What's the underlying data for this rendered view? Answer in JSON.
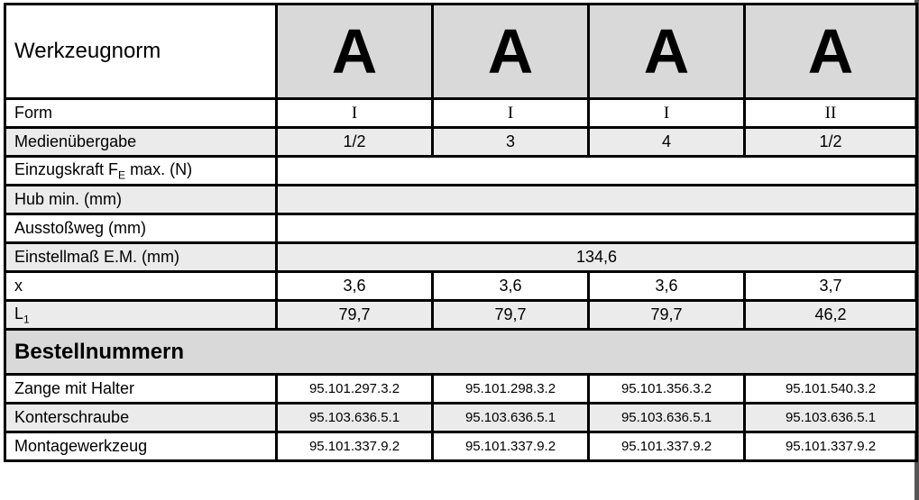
{
  "header": {
    "label": "Werkzeugnorm",
    "columns": [
      "A",
      "A",
      "A",
      "A"
    ]
  },
  "rows": {
    "form": {
      "label": "Form",
      "values": [
        "I",
        "I",
        "I",
        "II"
      ]
    },
    "medien": {
      "label": "Medienübergabe",
      "values": [
        "1/2",
        "3",
        "4",
        "1/2"
      ]
    },
    "einzug": {
      "label": "Einzugskraft F",
      "sub": "E",
      "suffix": " max. (N)",
      "value": ""
    },
    "hub": {
      "label": "Hub min. (mm)",
      "value": ""
    },
    "ausstoss": {
      "label": "Ausstoßweg (mm)",
      "value": ""
    },
    "einstell": {
      "label": "Einstellmaß E.M. (mm)",
      "value": "134,6"
    },
    "x": {
      "label": "x",
      "values": [
        "3,6",
        "3,6",
        "3,6",
        "3,7"
      ]
    },
    "l1": {
      "label": "L",
      "sub": "1",
      "values": [
        "79,7",
        "79,7",
        "79,7",
        "46,2"
      ]
    }
  },
  "section": {
    "title": "Bestellnummern"
  },
  "orders": [
    {
      "label": "Zange mit Halter",
      "values": [
        "95.101.297.3.2",
        "95.101.298.3.2",
        "95.101.356.3.2",
        "95.101.540.3.2"
      ]
    },
    {
      "label": "Konterschraube",
      "values": [
        "95.103.636.5.1",
        "95.103.636.5.1",
        "95.103.636.5.1",
        "95.103.636.5.1"
      ]
    },
    {
      "label": "Montagewerkzeug",
      "values": [
        "95.101.337.9.2",
        "95.101.337.9.2",
        "95.101.337.9.2",
        "95.101.337.9.2"
      ]
    }
  ]
}
